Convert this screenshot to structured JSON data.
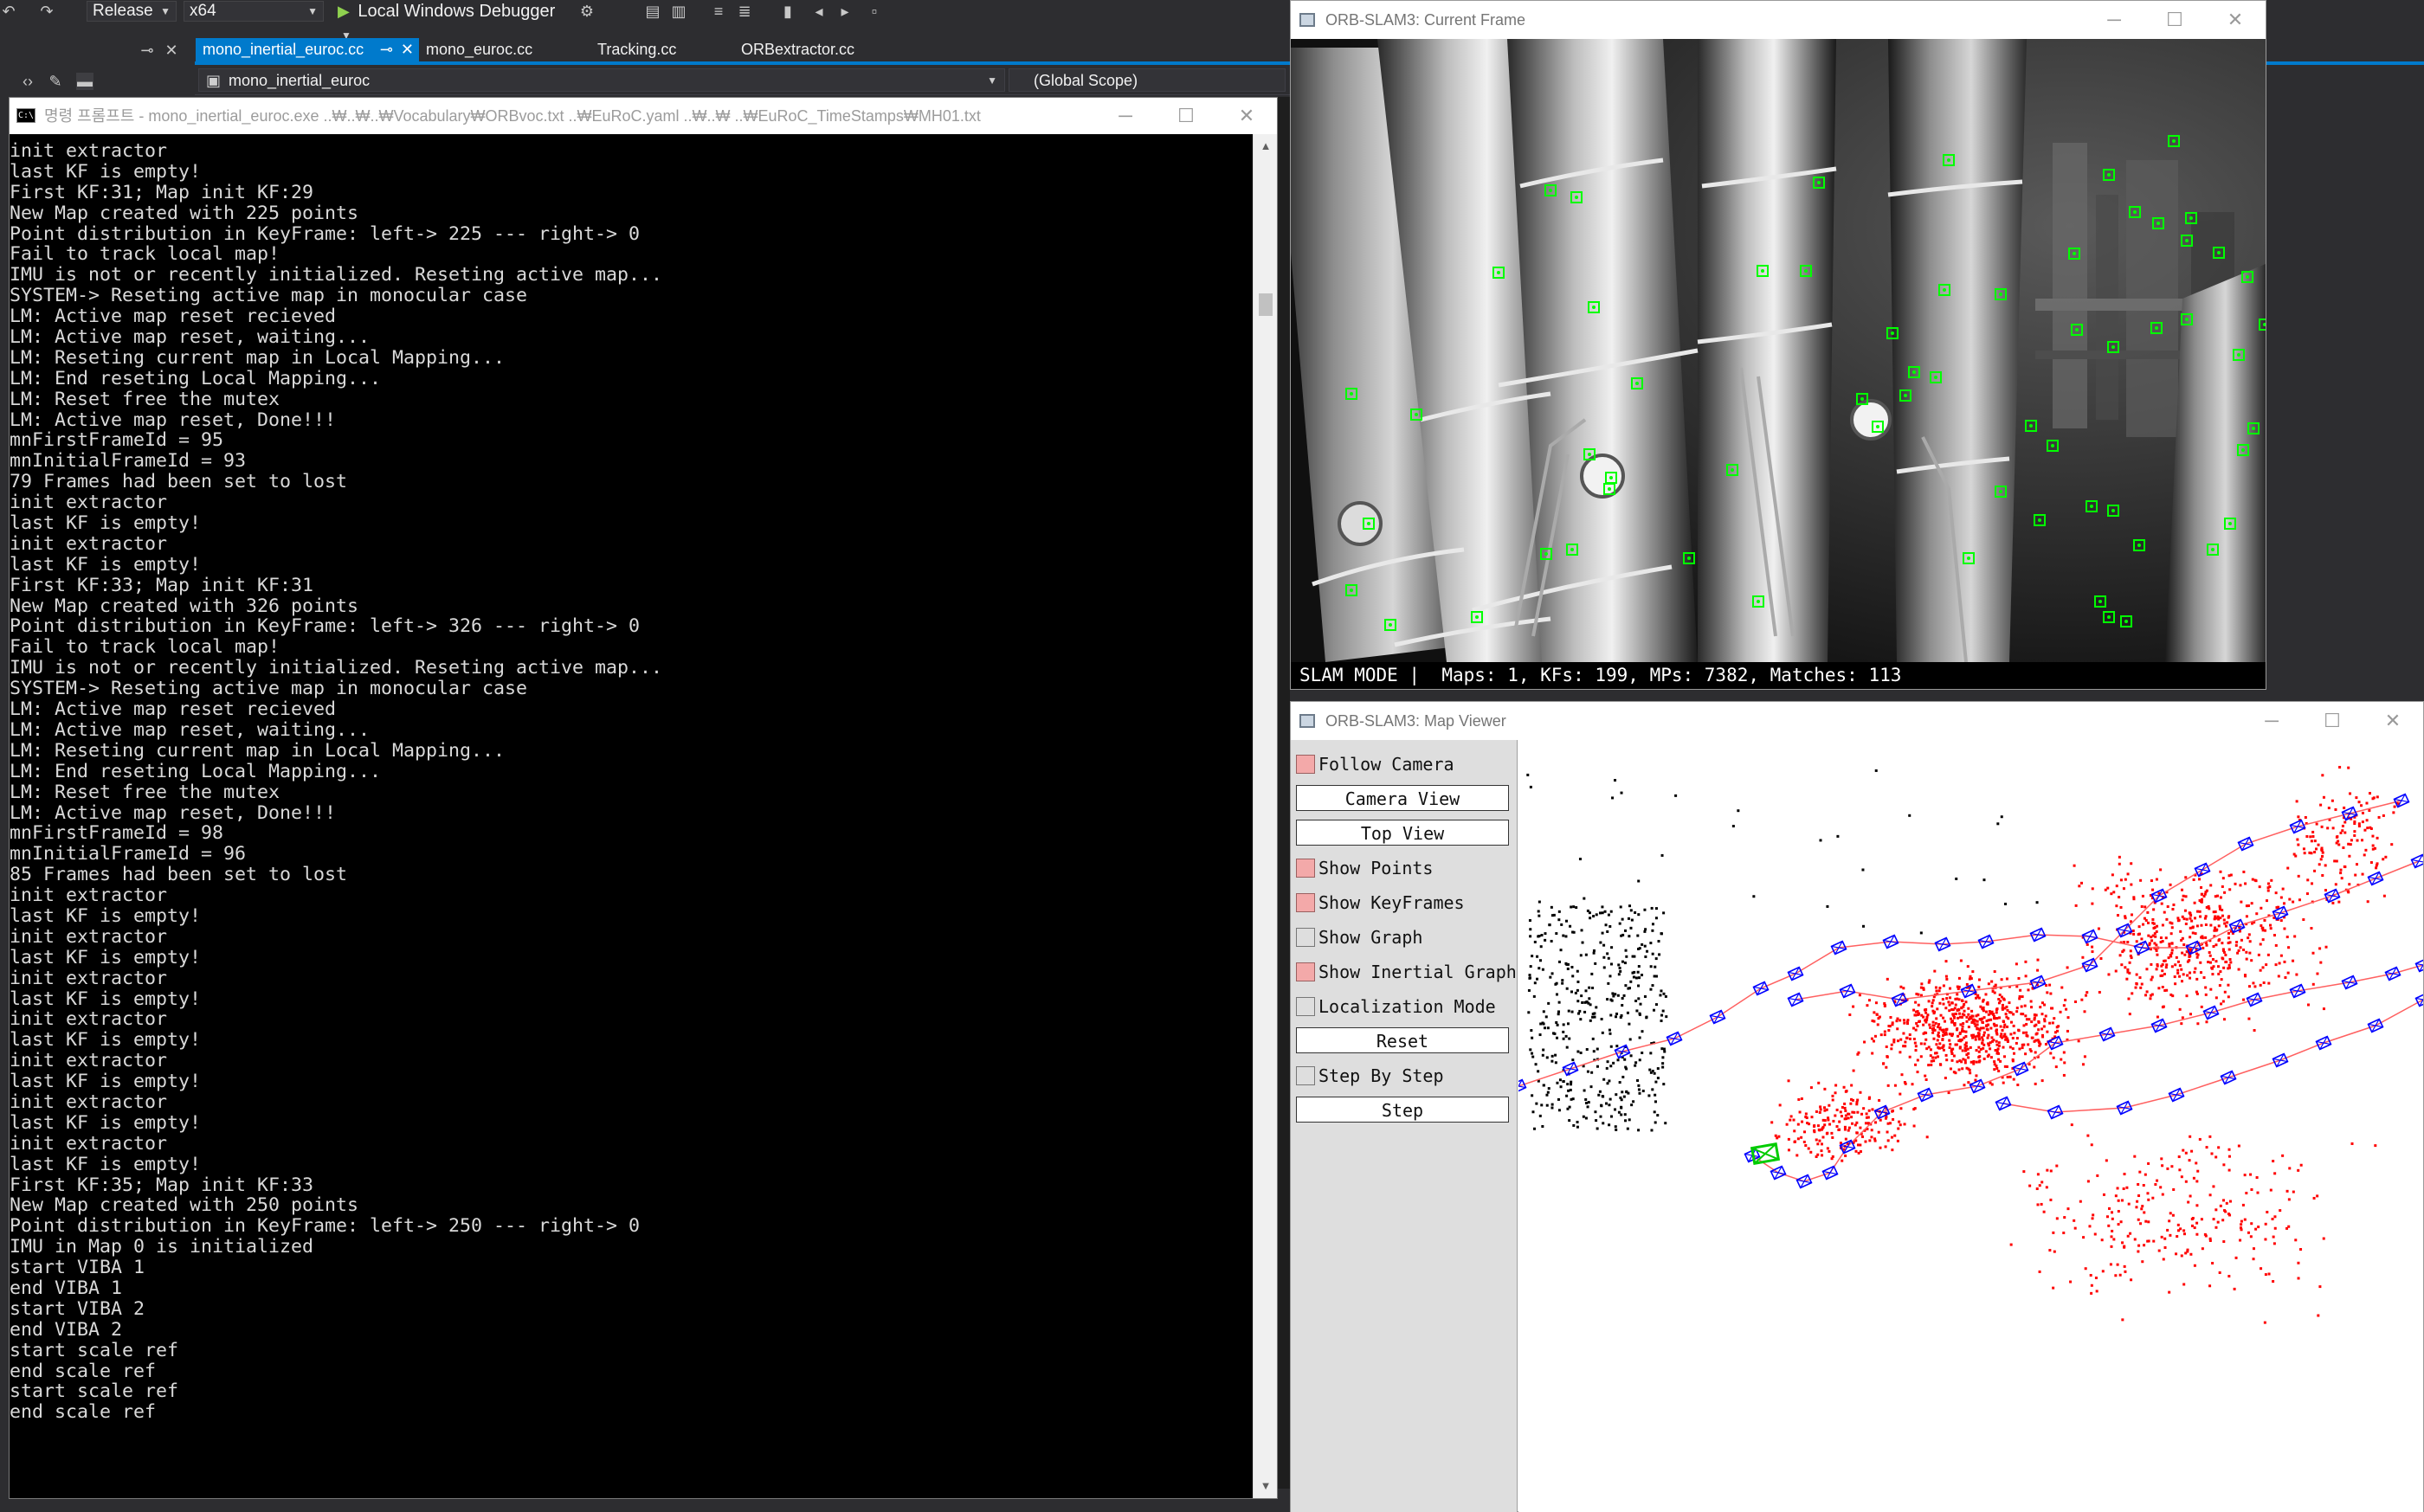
{
  "vs": {
    "toolbar": {
      "configuration": "Release",
      "platform": "x64",
      "debugger": "Local Windows Debugger"
    },
    "tabs": [
      {
        "label": "mono_inertial_euroc.cc",
        "active": true
      },
      {
        "label": "mono_euroc.cc",
        "active": false
      },
      {
        "label": "Tracking.cc",
        "active": false
      },
      {
        "label": "ORBextractor.cc",
        "active": false
      }
    ],
    "navbar": {
      "project": "mono_inertial_euroc",
      "scope": "(Global Scope)"
    },
    "accent_color": "#007acc"
  },
  "console": {
    "title": "명령 프롬프트 - mono_inertial_euroc.exe  ..₩..₩..₩Vocabulary₩ORBvoc.txt ..₩EuRoC.yaml ..₩..₩ ..₩EuRoC_TimeStamps₩MH01.txt",
    "icon_text": "C:\\",
    "lines": [
      "init extractor",
      "last KF is empty!",
      "First KF:31; Map init KF:29",
      "New Map created with 225 points",
      "Point distribution in KeyFrame: left-> 225 --- right-> 0",
      "Fail to track local map!",
      "IMU is not or recently initialized. Reseting active map...",
      "SYSTEM-> Reseting active map in monocular case",
      "LM: Active map reset recieved",
      "LM: Active map reset, waiting...",
      "LM: Reseting current map in Local Mapping...",
      "LM: End reseting Local Mapping...",
      "LM: Reset free the mutex",
      "LM: Active map reset, Done!!!",
      "mnFirstFrameId = 95",
      "mnInitialFrameId = 93",
      "79 Frames had been set to lost",
      "init extractor",
      "last KF is empty!",
      "init extractor",
      "last KF is empty!",
      "First KF:33; Map init KF:31",
      "New Map created with 326 points",
      "Point distribution in KeyFrame: left-> 326 --- right-> 0",
      "Fail to track local map!",
      "IMU is not or recently initialized. Reseting active map...",
      "SYSTEM-> Reseting active map in monocular case",
      "LM: Active map reset recieved",
      "LM: Active map reset, waiting...",
      "LM: Reseting current map in Local Mapping...",
      "LM: End reseting Local Mapping...",
      "LM: Reset free the mutex",
      "LM: Active map reset, Done!!!",
      "mnFirstFrameId = 98",
      "mnInitialFrameId = 96",
      "85 Frames had been set to lost",
      "init extractor",
      "last KF is empty!",
      "init extractor",
      "last KF is empty!",
      "init extractor",
      "last KF is empty!",
      "init extractor",
      "last KF is empty!",
      "init extractor",
      "last KF is empty!",
      "init extractor",
      "last KF is empty!",
      "init extractor",
      "last KF is empty!",
      "First KF:35; Map init KF:33",
      "New Map created with 250 points",
      "Point distribution in KeyFrame: left-> 250 --- right-> 0",
      "IMU in Map 0 is initialized",
      "start VIBA 1",
      "end VIBA 1",
      "start VIBA 2",
      "end VIBA 2",
      "start scale ref",
      "end scale ref",
      "start scale ref",
      "end scale ref"
    ]
  },
  "frame_window": {
    "title": "ORB-SLAM3: Current Frame",
    "status": "SLAM MODE |  Maps: 1, KFs: 199, MPs: 7382, Matches: 113",
    "feature_color": "#00ff00"
  },
  "map_window": {
    "title": "ORB-SLAM3: Map Viewer",
    "controls": [
      {
        "type": "checkbox",
        "label": "Follow Camera",
        "checked": true
      },
      {
        "type": "button",
        "label": "Camera View"
      },
      {
        "type": "button",
        "label": "Top View"
      },
      {
        "type": "checkbox",
        "label": "Show Points",
        "checked": true
      },
      {
        "type": "checkbox",
        "label": "Show KeyFrames",
        "checked": true
      },
      {
        "type": "checkbox",
        "label": "Show Graph",
        "checked": false
      },
      {
        "type": "checkbox",
        "label": "Show Inertial Graph",
        "checked": true
      },
      {
        "type": "checkbox",
        "label": "Localization Mode",
        "checked": false
      },
      {
        "type": "button",
        "label": "Reset"
      },
      {
        "type": "checkbox",
        "label": "Step By Step",
        "checked": false
      },
      {
        "type": "button",
        "label": "Step"
      }
    ],
    "colors": {
      "local_points": "#ff0000",
      "map_points": "#000000",
      "keyframes": "#0000ff",
      "current_camera": "#00cc00",
      "graph": "#ff6060"
    }
  },
  "window_controls": {
    "minimize": "─",
    "maximize": "☐",
    "close": "✕"
  }
}
